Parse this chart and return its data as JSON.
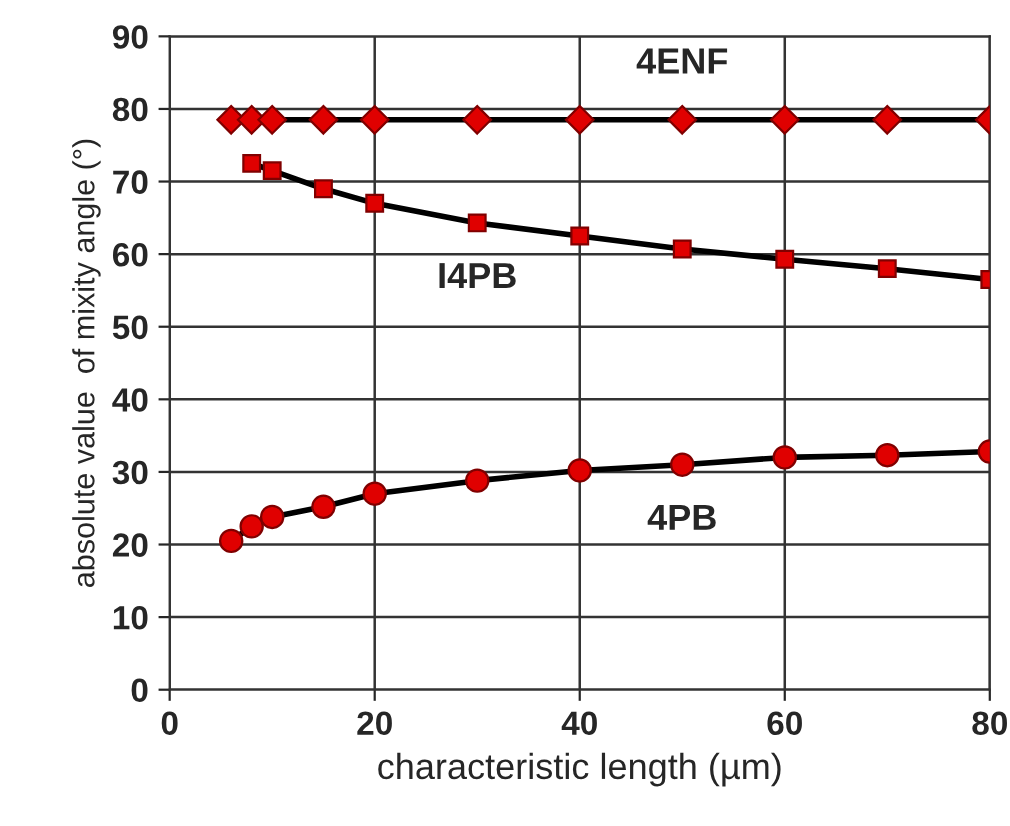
{
  "chart_data": {
    "type": "line",
    "xlabel": "characteristic length (µm)",
    "ylabel": "absolute value  of mixity angle (°)",
    "xlim": [
      0,
      80
    ],
    "xticks": [
      0,
      20,
      40,
      60,
      80
    ],
    "ylim": [
      0,
      90
    ],
    "yticks": [
      0,
      10,
      20,
      30,
      40,
      50,
      60,
      70,
      80,
      90
    ],
    "grid": true,
    "series": [
      {
        "name": "4ENF",
        "color": "#e00000",
        "marker": "diamond",
        "x": [
          6,
          8,
          10,
          15,
          20,
          30,
          40,
          50,
          60,
          70,
          80
        ],
        "values": [
          78.5,
          78.5,
          78.5,
          78.5,
          78.5,
          78.5,
          78.5,
          78.5,
          78.5,
          78.5,
          78.5
        ]
      },
      {
        "name": "I4PB",
        "color": "#e00000",
        "marker": "square",
        "x": [
          8,
          10,
          15,
          20,
          30,
          40,
          50,
          60,
          70,
          80
        ],
        "values": [
          72.5,
          71.5,
          69,
          67,
          64.3,
          62.5,
          60.7,
          59.3,
          58,
          56.5
        ]
      },
      {
        "name": "4PB",
        "color": "#e00000",
        "marker": "circle",
        "x": [
          6,
          8,
          10,
          15,
          20,
          30,
          40,
          50,
          60,
          70,
          80
        ],
        "values": [
          20.5,
          22.5,
          23.8,
          25.2,
          27,
          28.8,
          30.2,
          31,
          32,
          32.3,
          32.8
        ]
      }
    ]
  }
}
